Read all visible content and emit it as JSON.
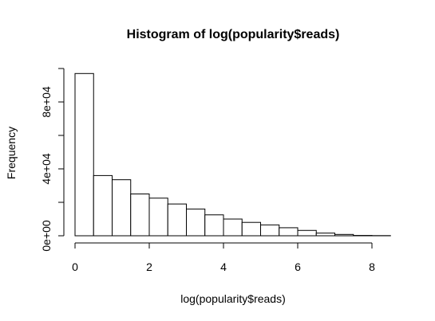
{
  "chart_data": {
    "type": "bar",
    "title": "Histogram of log(popularity$reads)",
    "xlabel": "log(popularity$reads)",
    "ylabel": "Frequency",
    "bin_edges": [
      0,
      0.5,
      1,
      1.5,
      2,
      2.5,
      3,
      3.5,
      4,
      4.5,
      5,
      5.5,
      6,
      6.5,
      7,
      7.5,
      8,
      8.5
    ],
    "values": [
      97000,
      36000,
      33500,
      25000,
      22500,
      19000,
      16000,
      12500,
      10000,
      8000,
      6500,
      4800,
      3200,
      1600,
      800,
      200,
      100
    ],
    "xlim": [
      0,
      8.5
    ],
    "ylim": [
      0,
      100000
    ],
    "x_ticks": [
      0,
      2,
      4,
      6,
      8
    ],
    "x_tick_labels": [
      "0",
      "2",
      "4",
      "6",
      "8"
    ],
    "y_ticks": [
      0,
      20000,
      40000,
      60000,
      80000,
      100000
    ],
    "y_tick_labels": [
      "0e+00",
      "",
      "4e+04",
      "",
      "8e+04",
      ""
    ],
    "grid": false,
    "colors": {
      "bar_fill": "#ffffff",
      "bar_stroke": "#000000"
    }
  }
}
